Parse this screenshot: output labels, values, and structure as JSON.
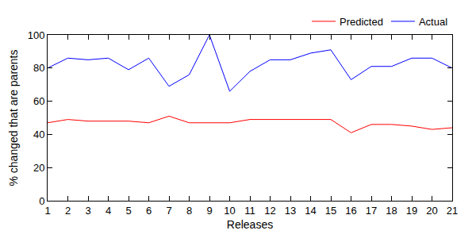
{
  "chart_data": {
    "type": "line",
    "x_label": "Releases",
    "y_label": "% changed that are parents",
    "x": [
      1,
      2,
      3,
      4,
      5,
      6,
      7,
      8,
      9,
      10,
      11,
      12,
      13,
      14,
      15,
      16,
      17,
      18,
      19,
      20,
      21
    ],
    "series": [
      {
        "name": "Predicted",
        "color": "#ff0000",
        "values": [
          47,
          49,
          48,
          48,
          48,
          47,
          51,
          47,
          47,
          47,
          49,
          49,
          49,
          49,
          49,
          41,
          46,
          46,
          45,
          43,
          44
        ]
      },
      {
        "name": "Actual",
        "color": "#0000ff",
        "values": [
          80,
          86,
          85,
          86,
          79,
          86,
          69,
          76,
          100,
          66,
          78,
          85,
          85,
          89,
          91,
          73,
          81,
          81,
          86,
          86,
          80
        ]
      }
    ],
    "xlim": [
      1,
      21
    ],
    "xticks": [
      1,
      2,
      3,
      4,
      5,
      6,
      7,
      8,
      9,
      10,
      11,
      12,
      13,
      14,
      15,
      16,
      17,
      18,
      19,
      20,
      21
    ],
    "ylim": [
      0,
      100
    ],
    "yticks": [
      0,
      20,
      40,
      60,
      80,
      100
    ],
    "grid": false,
    "legend": "top right"
  }
}
